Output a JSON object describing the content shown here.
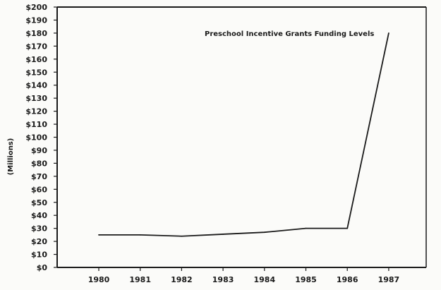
{
  "chart_data": {
    "type": "line",
    "title": "Preschool Incentive Grants Funding Levels",
    "ylabel": "(Millions)",
    "xlabel": "",
    "x": [
      "1980",
      "1981",
      "1982",
      "1983",
      "1984",
      "1985",
      "1986",
      "1987"
    ],
    "series": [
      {
        "values": [
          25,
          25,
          24,
          25.5,
          27,
          30,
          30,
          180
        ]
      }
    ],
    "ylim": [
      0,
      200
    ],
    "yticks": [
      0,
      10,
      20,
      30,
      40,
      50,
      60,
      70,
      80,
      90,
      100,
      110,
      120,
      130,
      140,
      150,
      160,
      170,
      180,
      190,
      200
    ],
    "ytick_prefix": "$",
    "grid": false,
    "line_color": "#1a1a1a",
    "frame_color": "#1a1a1a"
  }
}
